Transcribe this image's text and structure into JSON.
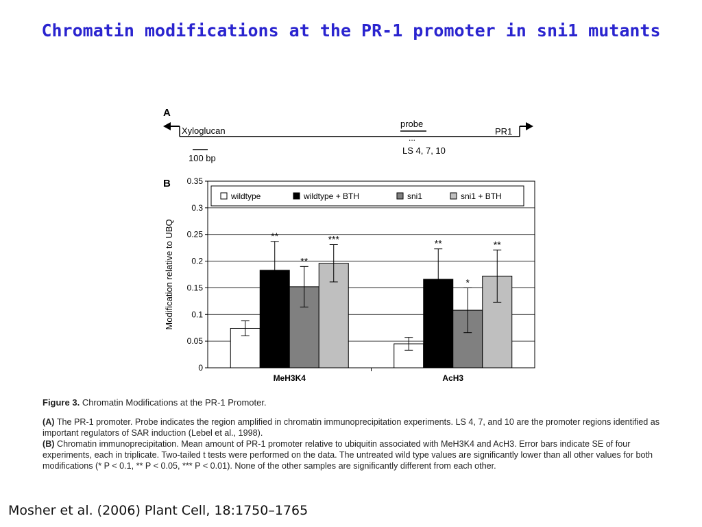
{
  "slide": {
    "title": "Chromatin modifications at the PR-1 promoter in sni1 mutants",
    "citation": "Mosher et al. (2006) Plant Cell, 18:1750–1765"
  },
  "panel_a": {
    "label": "A",
    "left_gene": "Xyloglucan",
    "right_gene": "PR1",
    "probe_label": "probe",
    "ls_label": "LS 4, 7, 10",
    "scale_label": "100 bp"
  },
  "chart_data": {
    "type": "bar",
    "panel_label": "B",
    "ylabel": "Modification relative to UBQ",
    "xlabel": "",
    "ylim": [
      0,
      0.35
    ],
    "yticks": [
      "0",
      "0.05",
      "0.1",
      "0.15",
      "0.2",
      "0.25",
      "0.3",
      "0.35"
    ],
    "grid": true,
    "legend_position": "top",
    "categories": [
      "MeH3K4",
      "AcH3"
    ],
    "series": [
      {
        "name": "wildtype",
        "color": "#ffffff",
        "values": [
          0.074,
          0.045
        ],
        "errors": [
          0.014,
          0.012
        ],
        "significance": [
          "",
          ""
        ]
      },
      {
        "name": "wildtype + BTH",
        "color": "#000000",
        "values": [
          0.183,
          0.166
        ],
        "errors": [
          0.054,
          0.057
        ],
        "significance": [
          "**",
          "**"
        ]
      },
      {
        "name": "sni1",
        "color": "#808080",
        "values": [
          0.152,
          0.108
        ],
        "errors": [
          0.038,
          0.042
        ],
        "significance": [
          "**",
          "*"
        ]
      },
      {
        "name": "sni1 + BTH",
        "color": "#bfbfbf",
        "values": [
          0.196,
          0.172
        ],
        "errors": [
          0.035,
          0.049
        ],
        "significance": [
          "***",
          "**"
        ]
      }
    ]
  },
  "caption": {
    "heading_prefix": "Figure 3.",
    "heading_text": "Chromatin Modifications at the PR-1 Promoter.",
    "part_a_label": "(A)",
    "part_a_text": "The PR-1 promoter. Probe indicates the region amplified in chromatin immunoprecipitation experiments. LS 4, 7, and 10 are the promoter regions identified as important regulators of SAR induction (Lebel et al., 1998).",
    "part_b_label": "(B)",
    "part_b_text": "Chromatin immunoprecipitation. Mean amount of PR-1 promoter relative to ubiquitin associated with MeH3K4 and AcH3. Error bars indicate SE of four experiments, each in triplicate. Two-tailed t tests were performed on the data. The untreated wild type values are significantly lower than all other values for both modifications (* P < 0.1, ** P < 0.05, *** P < 0.01). None of the other samples are significantly different from each other."
  }
}
